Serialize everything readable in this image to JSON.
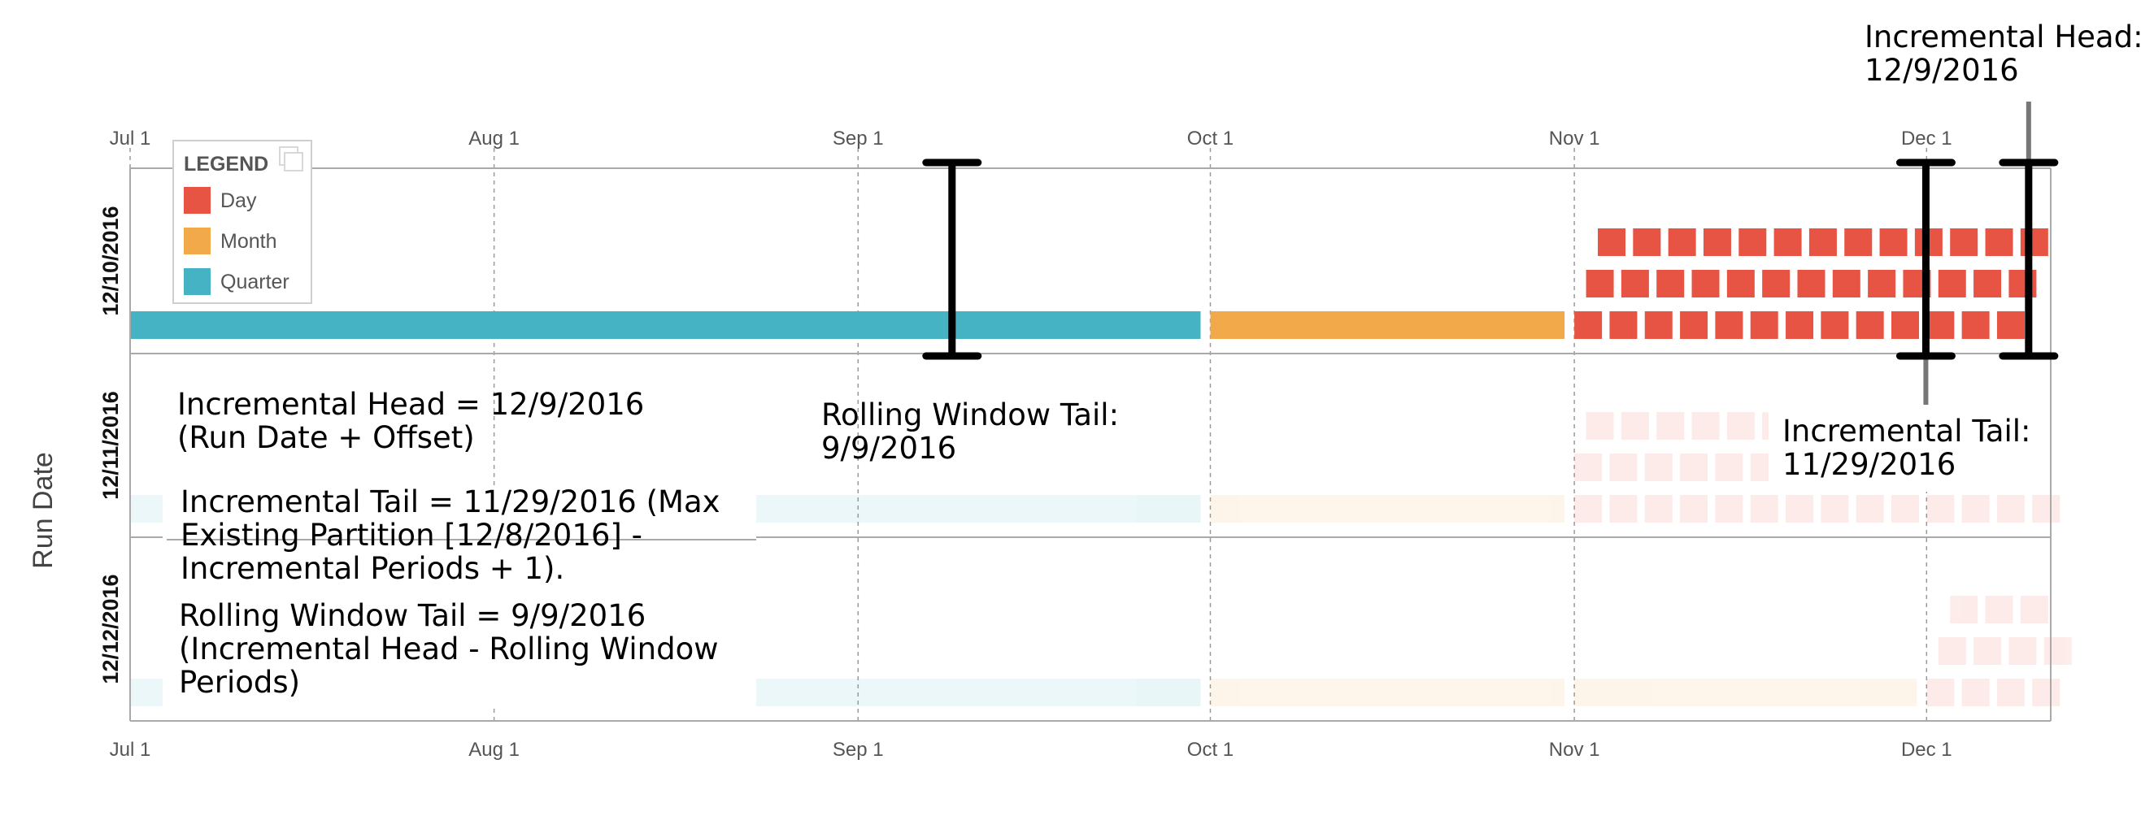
{
  "chart_data": {
    "type": "timeline",
    "x_axis": {
      "range": [
        "2016-07-01",
        "2016-12-16"
      ],
      "ticks": [
        {
          "date": "2016-07-01",
          "label": "Jul 1"
        },
        {
          "date": "2016-08-01",
          "label": "Aug 1"
        },
        {
          "date": "2016-09-01",
          "label": "Sep 1"
        },
        {
          "date": "2016-10-01",
          "label": "Oct 1"
        },
        {
          "date": "2016-11-01",
          "label": "Nov 1"
        },
        {
          "date": "2016-12-01",
          "label": "Dec 1"
        }
      ],
      "gridlines": "dashed"
    },
    "y_axis": {
      "title": "Run Date",
      "rows": [
        "12/10/2016",
        "12/11/2016",
        "12/12/2016"
      ],
      "highlighted_row": "12/10/2016"
    },
    "legend": {
      "title": "LEGEND",
      "placement": "top-left",
      "items": [
        {
          "label": "Day",
          "color": "#E85444"
        },
        {
          "label": "Month",
          "color": "#F2A94A"
        },
        {
          "label": "Quarter",
          "color": "#45B3C4"
        }
      ]
    },
    "rows": [
      {
        "run_date": "12/10/2016",
        "faded": false,
        "bars": [
          {
            "granularity": "Quarter",
            "start": "2016-07-01",
            "end": "2016-09-30",
            "lane": 0
          },
          {
            "granularity": "Month",
            "start": "2016-10-01",
            "end": "2016-10-31",
            "lane": 0
          },
          {
            "granularity": "Day",
            "start": "2016-11-01",
            "end": "2016-12-09",
            "lane": 0,
            "daily": true
          },
          {
            "granularity": "Day",
            "start": "2016-11-02",
            "end": "2016-12-09",
            "lane": 1,
            "daily": true
          },
          {
            "granularity": "Day",
            "start": "2016-11-03",
            "end": "2016-12-10",
            "lane": 2,
            "daily": true
          }
        ]
      },
      {
        "run_date": "12/11/2016",
        "faded": true,
        "bars": [
          {
            "granularity": "Quarter",
            "start": "2016-07-01",
            "end": "2016-09-30",
            "lane": 0
          },
          {
            "granularity": "Month",
            "start": "2016-10-01",
            "end": "2016-10-31",
            "lane": 0
          },
          {
            "granularity": "Day",
            "start": "2016-11-01",
            "end": "2016-12-11",
            "lane": 0,
            "daily": true
          },
          {
            "granularity": "Day",
            "start": "2016-11-01",
            "end": "2016-11-19",
            "lane": 1,
            "daily": true
          },
          {
            "granularity": "Day",
            "start": "2016-11-02",
            "end": "2016-11-19",
            "lane": 2,
            "daily": true
          }
        ]
      },
      {
        "run_date": "12/12/2016",
        "faded": true,
        "bars": [
          {
            "granularity": "Quarter",
            "start": "2016-07-01",
            "end": "2016-09-30",
            "lane": 0
          },
          {
            "granularity": "Month",
            "start": "2016-10-01",
            "end": "2016-10-31",
            "lane": 0
          },
          {
            "granularity": "Month",
            "start": "2016-11-01",
            "end": "2016-11-30",
            "lane": 0
          },
          {
            "granularity": "Day",
            "start": "2016-12-01",
            "end": "2016-12-12",
            "lane": 0,
            "daily": true
          },
          {
            "granularity": "Day",
            "start": "2016-12-02",
            "end": "2016-12-12",
            "lane": 1,
            "daily": true
          },
          {
            "granularity": "Day",
            "start": "2016-12-03",
            "end": "2016-12-10",
            "lane": 2,
            "daily": true
          }
        ]
      }
    ],
    "markers": [
      {
        "name": "Rolling Window Tail",
        "date": "2016-09-09",
        "label": "Rolling Window Tail:\n9/9/2016",
        "style": "bracket"
      },
      {
        "name": "Incremental Tail",
        "date": "2016-11-29",
        "label": "Incremental Tail:\n11/29/2016",
        "style": "bracket"
      },
      {
        "name": "Incremental Head",
        "date": "2016-12-09",
        "label": "Incremental Head:\n12/9/2016",
        "style": "bracket"
      }
    ],
    "annotations": [
      "Incremental Head = 12/9/2016\n(Run Date + Offset)",
      "Incremental Tail = 11/29/2016 (Max\nExisting Partition [12/8/2016] -\nIncremental Periods + 1).",
      "Rolling Window Tail = 9/9/2016\n(Incremental Head - Rolling Window\nPeriods)"
    ]
  }
}
